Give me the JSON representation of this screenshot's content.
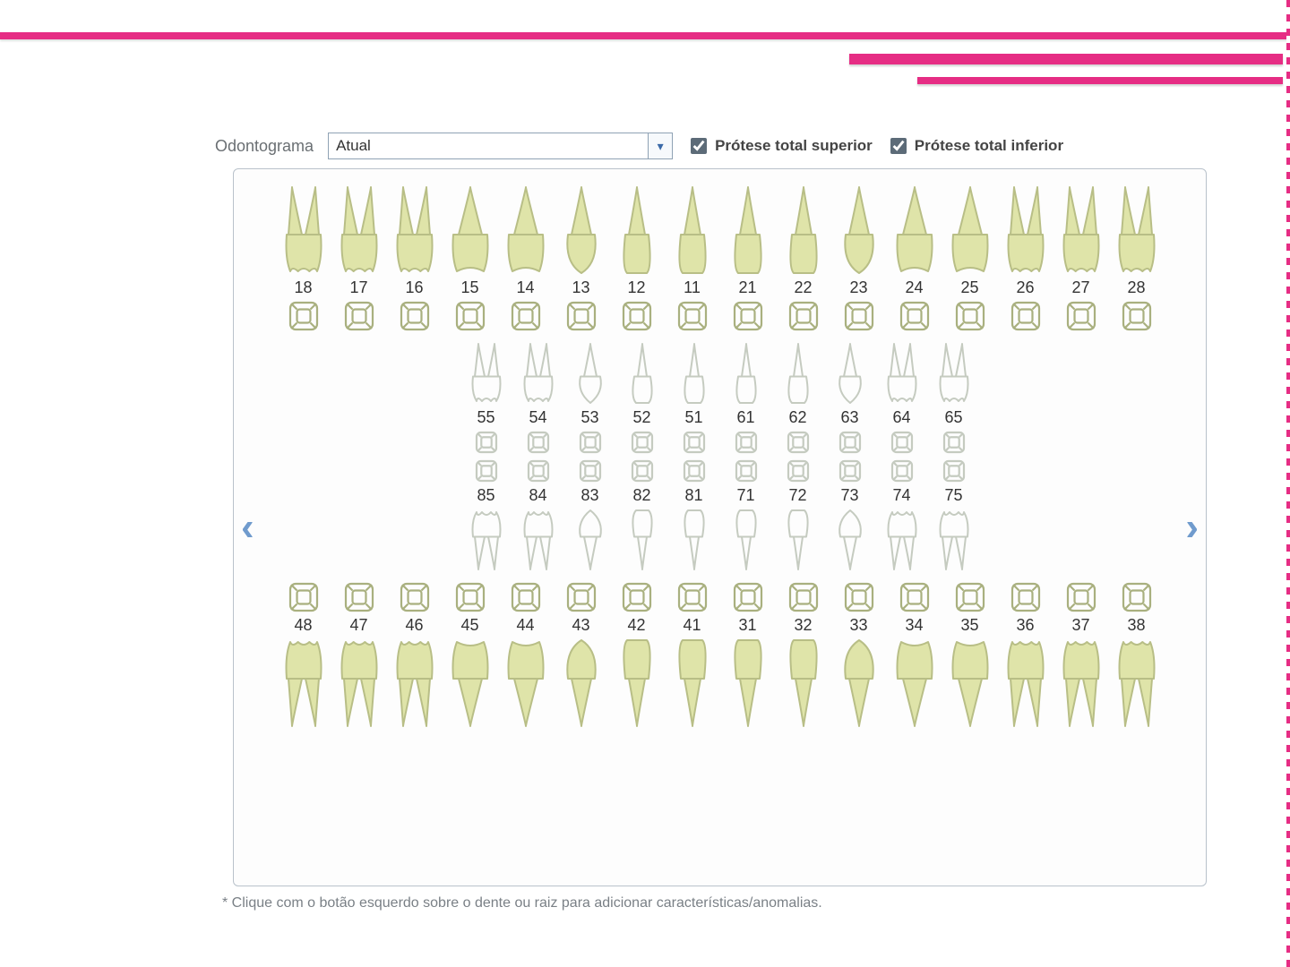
{
  "accent_color": "#e62d84",
  "panel_bg": "#fdfdfd",
  "panel_border": "#b9c2cb",
  "tooth_fill_solid": "#dfe4a9",
  "tooth_stroke_solid": "#b8be86",
  "tooth_stroke_ghost": "#c5cbc0",
  "surface_stroke_solid": "#a9b07f",
  "surface_stroke_ghost": "#c5cbc0",
  "arrow_color": "#709bcd",
  "controls": {
    "label": "Odontograma",
    "combo_value": "Atual",
    "chk1_label": "Prótese total superior",
    "chk2_label": "Prótese total inferior",
    "chk1_checked": true,
    "chk2_checked": true
  },
  "arrows": {
    "left": "‹",
    "right": "›"
  },
  "rows": {
    "upper_perm": [
      18,
      17,
      16,
      15,
      14,
      13,
      12,
      11,
      21,
      22,
      23,
      24,
      25,
      26,
      27,
      28
    ],
    "upper_decid": [
      55,
      54,
      53,
      52,
      51,
      61,
      62,
      63,
      64,
      65
    ],
    "lower_decid": [
      85,
      84,
      83,
      82,
      81,
      71,
      72,
      73,
      74,
      75
    ],
    "lower_perm": [
      48,
      47,
      46,
      45,
      44,
      43,
      42,
      41,
      31,
      32,
      33,
      34,
      35,
      36,
      37,
      38
    ]
  },
  "tooth_kind": {
    "18": "molar",
    "17": "molar",
    "16": "molar",
    "15": "premolar",
    "14": "premolar",
    "13": "canine",
    "12": "incisor",
    "11": "incisor",
    "21": "incisor",
    "22": "incisor",
    "23": "canine",
    "24": "premolar",
    "25": "premolar",
    "26": "molar",
    "27": "molar",
    "28": "molar",
    "55": "molar",
    "54": "molar",
    "53": "canine",
    "52": "incisor",
    "51": "incisor",
    "61": "incisor",
    "62": "incisor",
    "63": "canine",
    "64": "molar",
    "65": "molar",
    "85": "molar",
    "84": "molar",
    "83": "canine",
    "82": "incisor",
    "81": "incisor",
    "71": "incisor",
    "72": "incisor",
    "73": "canine",
    "74": "molar",
    "75": "molar",
    "48": "molar",
    "47": "molar",
    "46": "molar",
    "45": "premolar",
    "44": "premolar",
    "43": "canine",
    "42": "incisor",
    "41": "incisor",
    "31": "incisor",
    "32": "incisor",
    "33": "canine",
    "34": "premolar",
    "35": "premolar",
    "36": "molar",
    "37": "molar",
    "38": "molar"
  },
  "footnote": "* Clique com o botão esquerdo sobre o dente ou raiz para adicionar características/anomalias."
}
